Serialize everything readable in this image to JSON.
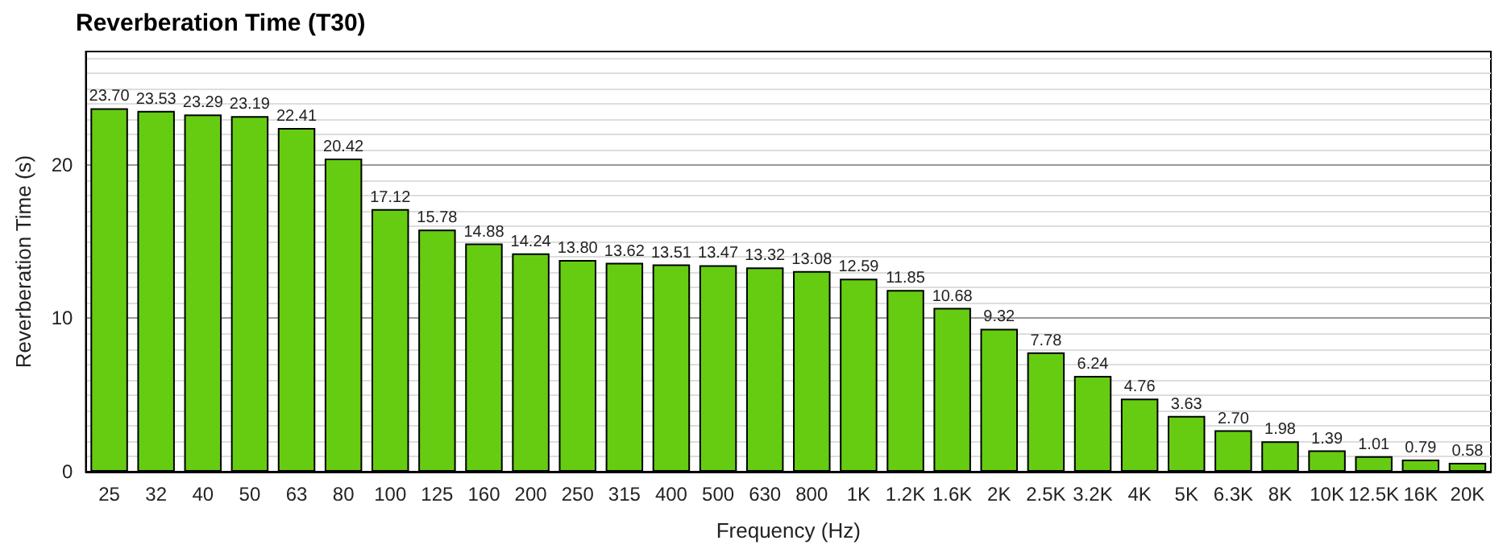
{
  "chart_data": {
    "type": "bar",
    "title": "Reverberation Time (T30)",
    "xlabel": "Frequency (Hz)",
    "ylabel": "Reverberation Time (s)",
    "categories": [
      "25",
      "32",
      "40",
      "50",
      "63",
      "80",
      "100",
      "125",
      "160",
      "200",
      "250",
      "315",
      "400",
      "500",
      "630",
      "800",
      "1K",
      "1.2K",
      "1.6K",
      "2K",
      "2.5K",
      "3.2K",
      "4K",
      "5K",
      "6.3K",
      "8K",
      "10K",
      "12.5K",
      "16K",
      "20K"
    ],
    "values": [
      23.7,
      23.53,
      23.29,
      23.19,
      22.41,
      20.42,
      17.12,
      15.78,
      14.88,
      14.24,
      13.8,
      13.62,
      13.51,
      13.47,
      13.32,
      13.08,
      12.59,
      11.85,
      10.68,
      9.32,
      7.78,
      6.24,
      4.76,
      3.63,
      2.7,
      1.98,
      1.39,
      1.01,
      0.79,
      0.58
    ],
    "value_labels": [
      "23.70",
      "23.53",
      "23.29",
      "23.19",
      "22.41",
      "20.42",
      "17.12",
      "15.78",
      "14.88",
      "14.24",
      "13.80",
      "13.62",
      "13.51",
      "13.47",
      "13.32",
      "13.08",
      "12.59",
      "11.85",
      "10.68",
      "9.32",
      "7.78",
      "6.24",
      "4.76",
      "3.63",
      "2.70",
      "1.98",
      "1.39",
      "1.01",
      "0.79",
      "0.58"
    ],
    "color": "#66cc11",
    "grid": "y",
    "ylim": [
      0,
      27.4
    ],
    "yticks": [
      0,
      {
        "value": 1,
        "label": null
      },
      {
        "value": 2,
        "label": null
      },
      {
        "value": 3,
        "label": null
      },
      {
        "value": 4,
        "label": null
      },
      {
        "value": 5,
        "label": null
      },
      {
        "value": 6,
        "label": null
      },
      {
        "value": 7,
        "label": null
      },
      {
        "value": 8,
        "label": null
      },
      {
        "value": 9,
        "label": null
      },
      10,
      {
        "value": 11,
        "label": null
      },
      {
        "value": 12,
        "label": null
      },
      {
        "value": 13,
        "label": null
      },
      {
        "value": 14,
        "label": null
      },
      {
        "value": 15,
        "label": null
      },
      {
        "value": 16,
        "label": null
      },
      {
        "value": 17,
        "label": null
      },
      {
        "value": 18,
        "label": null
      },
      {
        "value": 19,
        "label": null
      },
      20,
      {
        "value": 21,
        "label": null
      },
      {
        "value": 22,
        "label": null
      },
      {
        "value": 23,
        "label": null
      },
      {
        "value": 24,
        "label": null
      },
      {
        "value": 25,
        "label": null
      },
      {
        "value": 26,
        "label": null
      },
      {
        "value": 27,
        "label": null
      }
    ]
  }
}
